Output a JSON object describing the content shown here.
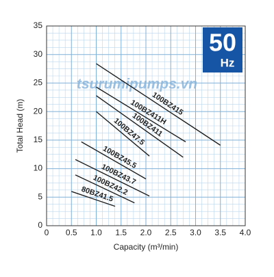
{
  "chart_data": {
    "type": "line",
    "xlabel": "Capacity (m³/min)",
    "ylabel": "Total Head (m)",
    "badge": {
      "value": "50",
      "unit": "Hz"
    },
    "watermark": "tsurumipumps.vn",
    "xlim": [
      0,
      4
    ],
    "ylim": [
      0,
      35
    ],
    "xticks": [
      0,
      0.5,
      {
        "value": 1,
        "label": "1.0"
      },
      1.5,
      {
        "value": 2,
        "label": "2.0"
      },
      2.5,
      {
        "value": 3,
        "label": "3.0"
      },
      3.5,
      {
        "value": 4,
        "label": "4.0"
      }
    ],
    "yticks": [
      0,
      5,
      10,
      15,
      20,
      25,
      30,
      35
    ],
    "grid": true,
    "color": "#1e1e1e",
    "series": [
      {
        "name": "100BZ415",
        "x": [
          1.0,
          3.5
        ],
        "values": [
          28.4,
          14.1
        ]
      },
      {
        "name": "100BZ411H",
        "x": [
          1.0,
          2.8
        ],
        "values": [
          24.3,
          14.7
        ]
      },
      {
        "name": "100BZ411",
        "x": [
          1.0,
          2.75
        ],
        "values": [
          22.8,
          12.0
        ]
      },
      {
        "name": "100BZ47.5",
        "x": [
          1.0,
          2.07
        ],
        "values": [
          20.0,
          12.2
        ]
      },
      {
        "name": "100BZ45.5",
        "x": [
          0.7,
          2.0
        ],
        "values": [
          14.7,
          8.2
        ]
      },
      {
        "name": "100BZ43.7",
        "x": [
          0.58,
          2.07
        ],
        "values": [
          11.6,
          5.2
        ]
      },
      {
        "name": "100BZ42.2",
        "x": [
          0.58,
          1.77
        ],
        "values": [
          8.9,
          4.0
        ]
      },
      {
        "name": "80BZ41.5",
        "x": [
          0.5,
          1.38
        ],
        "values": [
          6.0,
          3.4
        ]
      }
    ]
  }
}
